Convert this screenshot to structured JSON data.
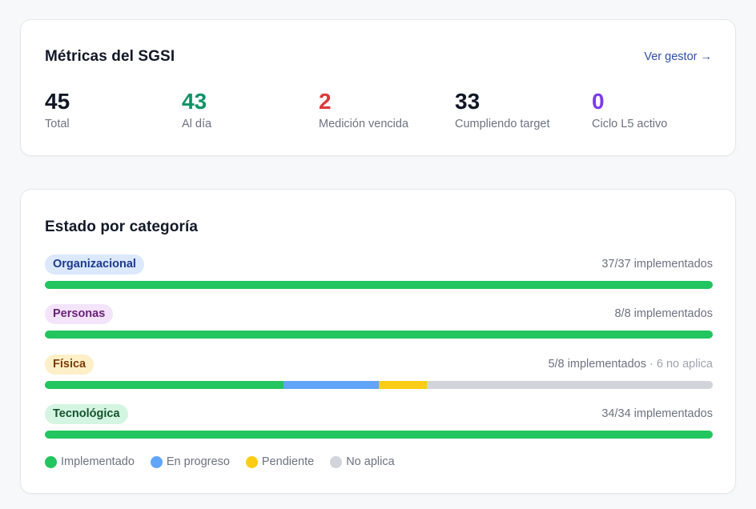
{
  "metrics_card": {
    "title": "Métricas del SGSI",
    "link": "Ver gestor →",
    "link_color": "#2f4ea8",
    "metrics": [
      {
        "value": "45",
        "label": "Total",
        "color": "#111827"
      },
      {
        "value": "43",
        "label": "Al día",
        "color": "#0d9467"
      },
      {
        "value": "2",
        "label": "Medición vencida",
        "color": "#dc3a3a"
      },
      {
        "value": "33",
        "label": "Cumpliendo target",
        "color": "#111827"
      },
      {
        "value": "0",
        "label": "Ciclo L5 activo",
        "color": "#7c3aed"
      }
    ]
  },
  "category_card": {
    "title": "Estado por categoría",
    "categories": [
      {
        "name": "Organizacional",
        "count": "37/37 implementados",
        "extra": "",
        "badge_bg": "#dbe8fd",
        "badge_fg": "#1e3a8a",
        "segments": {
          "implementado": 37,
          "en_progreso": 0,
          "pendiente": 0,
          "no_aplica": 0
        }
      },
      {
        "name": "Personas",
        "count": "8/8 implementados",
        "extra": "",
        "badge_bg": "#f3e4fc",
        "badge_fg": "#6b2179",
        "segments": {
          "implementado": 8,
          "en_progreso": 0,
          "pendiente": 0,
          "no_aplica": 0
        }
      },
      {
        "name": "Física",
        "count": "5/8 implementados",
        "extra": " · 6 no aplica",
        "badge_bg": "#fdefc7",
        "badge_fg": "#7a3d0a",
        "segments": {
          "implementado": 5,
          "en_progreso": 2,
          "pendiente": 1,
          "no_aplica": 6
        }
      },
      {
        "name": "Tecnológica",
        "count": "34/34 implementados",
        "extra": "",
        "badge_bg": "#d4f5e1",
        "badge_fg": "#14532d",
        "segments": {
          "implementado": 34,
          "en_progreso": 0,
          "pendiente": 0,
          "no_aplica": 0
        }
      }
    ],
    "legend": [
      {
        "key": "implementado",
        "label": "Implementado",
        "color": "#22c55e"
      },
      {
        "key": "en_progreso",
        "label": "En progreso",
        "color": "#60a5fa"
      },
      {
        "key": "pendiente",
        "label": "Pendiente",
        "color": "#facc15"
      },
      {
        "key": "no_aplica",
        "label": "No aplica",
        "color": "#d1d5db"
      }
    ]
  }
}
